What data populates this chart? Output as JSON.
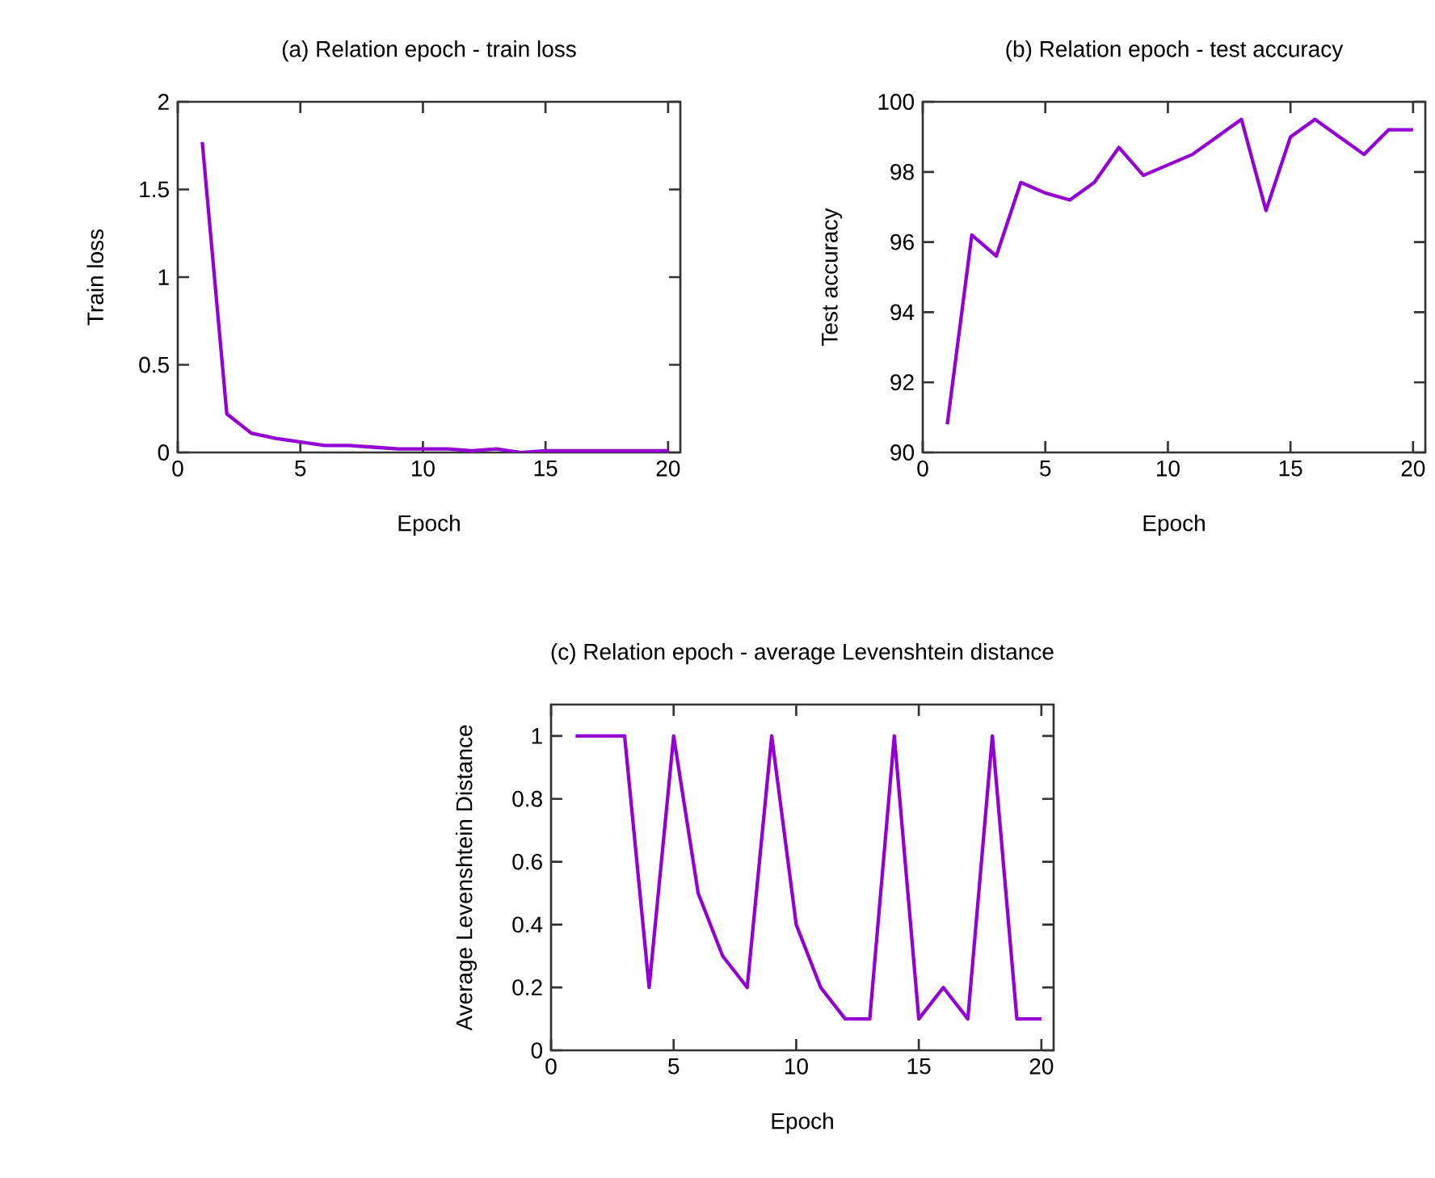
{
  "chart_data": [
    {
      "type": "line",
      "title": "(a) Relation epoch - train loss",
      "xlabel": "Epoch",
      "ylabel": "Train loss",
      "color": "#9400d3",
      "x": [
        1,
        2,
        3,
        4,
        5,
        6,
        7,
        8,
        9,
        10,
        11,
        12,
        13,
        14,
        15,
        16,
        17,
        18,
        19,
        20
      ],
      "values": [
        1.77,
        0.22,
        0.11,
        0.08,
        0.06,
        0.04,
        0.04,
        0.03,
        0.02,
        0.02,
        0.02,
        0.01,
        0.02,
        0.0,
        0.01,
        0.01,
        0.01,
        0.01,
        0.01,
        0.01
      ],
      "xlim": [
        0,
        20.5
      ],
      "ylim": [
        0,
        2
      ],
      "xticks": [
        0,
        5,
        10,
        15,
        20
      ],
      "yticks": [
        0,
        0.5,
        1,
        1.5,
        2
      ]
    },
    {
      "type": "line",
      "title": "(b) Relation epoch - test accuracy",
      "xlabel": "Epoch",
      "ylabel": "Test accuracy",
      "color": "#9400d3",
      "x": [
        1,
        2,
        3,
        4,
        5,
        6,
        7,
        8,
        9,
        10,
        11,
        12,
        13,
        14,
        15,
        16,
        17,
        18,
        19,
        20
      ],
      "values": [
        90.8,
        96.2,
        95.6,
        97.7,
        97.4,
        97.2,
        97.7,
        98.7,
        97.9,
        98.2,
        98.5,
        99.0,
        99.5,
        96.9,
        99.0,
        99.5,
        99.0,
        98.5,
        99.2,
        99.2
      ],
      "xlim": [
        0,
        20.5
      ],
      "ylim": [
        90,
        100
      ],
      "xticks": [
        0,
        5,
        10,
        15,
        20
      ],
      "yticks": [
        90,
        92,
        94,
        96,
        98,
        100
      ]
    },
    {
      "type": "line",
      "title": "(c) Relation epoch - average Levenshtein distance",
      "xlabel": "Epoch",
      "ylabel": "Average Levenshtein Distance",
      "color": "#9400d3",
      "x": [
        1,
        2,
        3,
        4,
        5,
        6,
        7,
        8,
        9,
        10,
        11,
        12,
        13,
        14,
        15,
        16,
        17,
        18,
        19,
        20
      ],
      "values": [
        1,
        1,
        1,
        0.2,
        1,
        0.5,
        0.3,
        0.2,
        1,
        0.4,
        0.2,
        0.1,
        0.1,
        1,
        0.1,
        0.2,
        0.1,
        1,
        0.1,
        0.1
      ],
      "xlim": [
        0,
        20.5
      ],
      "ylim": [
        0,
        1.1
      ],
      "xticks": [
        0,
        5,
        10,
        15,
        20
      ],
      "yticks": [
        0,
        0.2,
        0.4,
        0.6,
        0.8,
        1
      ]
    }
  ]
}
